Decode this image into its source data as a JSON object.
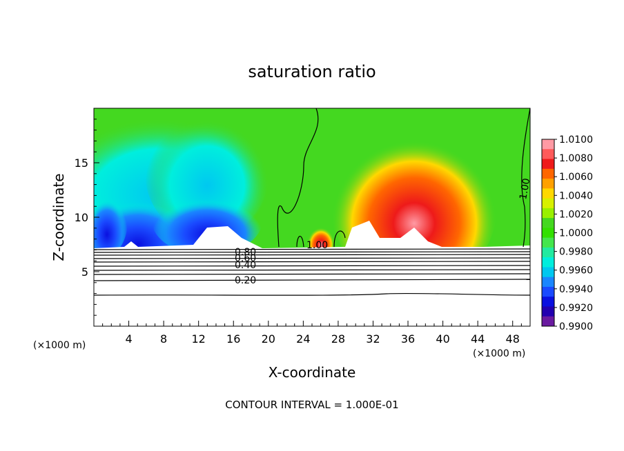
{
  "chart_data": {
    "type": "heatmap",
    "title": "saturation ratio",
    "xlabel": "X-coordinate",
    "ylabel": "Z-coordinate",
    "x_units_left": "(×1000 m)",
    "x_units_right": "(×1000 m)",
    "footer": "CONTOUR INTERVAL = 1.000E-01",
    "xlim": [
      0,
      50
    ],
    "ylim": [
      0,
      20
    ],
    "x_ticks": [
      "4",
      "8",
      "12",
      "16",
      "20",
      "24",
      "28",
      "32",
      "36",
      "40",
      "44",
      "48"
    ],
    "y_ticks": [
      "5",
      "10",
      "15"
    ],
    "colorbar": {
      "ticks": [
        "1.0100",
        "1.0080",
        "1.0060",
        "1.0040",
        "1.0020",
        "1.0000",
        "0.9980",
        "0.9960",
        "0.9940",
        "0.9920",
        "0.9900"
      ],
      "colors": [
        "#ff9aa4",
        "#ff5a5a",
        "#ee1a1a",
        "#ff6600",
        "#ffa000",
        "#ffd800",
        "#d8f000",
        "#99f000",
        "#44d820",
        "#33e000",
        "#44e64c",
        "#22eaa0",
        "#00eedd",
        "#00c8f0",
        "#1a86ff",
        "#1a4aff",
        "#0a10e0",
        "#2200b0",
        "#6a1aa0"
      ]
    },
    "contour_labels": [
      "0.80",
      "0.60",
      "0.40",
      "0.20",
      "1.00",
      "1.00"
    ]
  }
}
